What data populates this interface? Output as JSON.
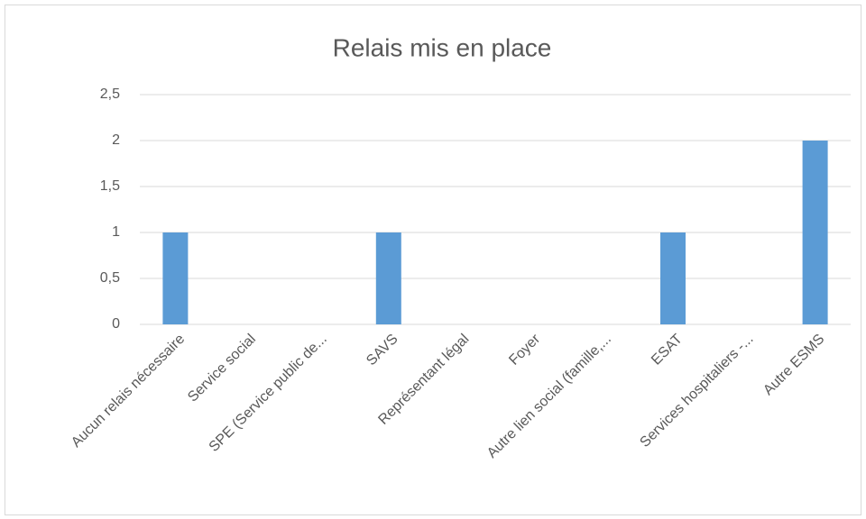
{
  "chart_data": {
    "type": "bar",
    "title": "Relais mis en place",
    "categories": [
      "Aucun relais nécessaire",
      "Service social",
      "SPE (Service public de...",
      "SAVS",
      "Représentant légal",
      "Foyer",
      "Autre lien social (famille,...",
      "ESAT",
      "Services hospitaliers -...",
      "Autre ESMS"
    ],
    "values": [
      1,
      0,
      0,
      1,
      0,
      0,
      0,
      1,
      0,
      2
    ],
    "color": "#5b9bd5",
    "ylim": [
      0,
      2.5
    ],
    "yticks": [
      0,
      {
        "value": 0.5,
        "label": "0,5"
      },
      1,
      {
        "value": 1.5,
        "label": "1,5"
      },
      2,
      {
        "value": 2.5,
        "label": "2,5"
      }
    ],
    "grid": true
  }
}
